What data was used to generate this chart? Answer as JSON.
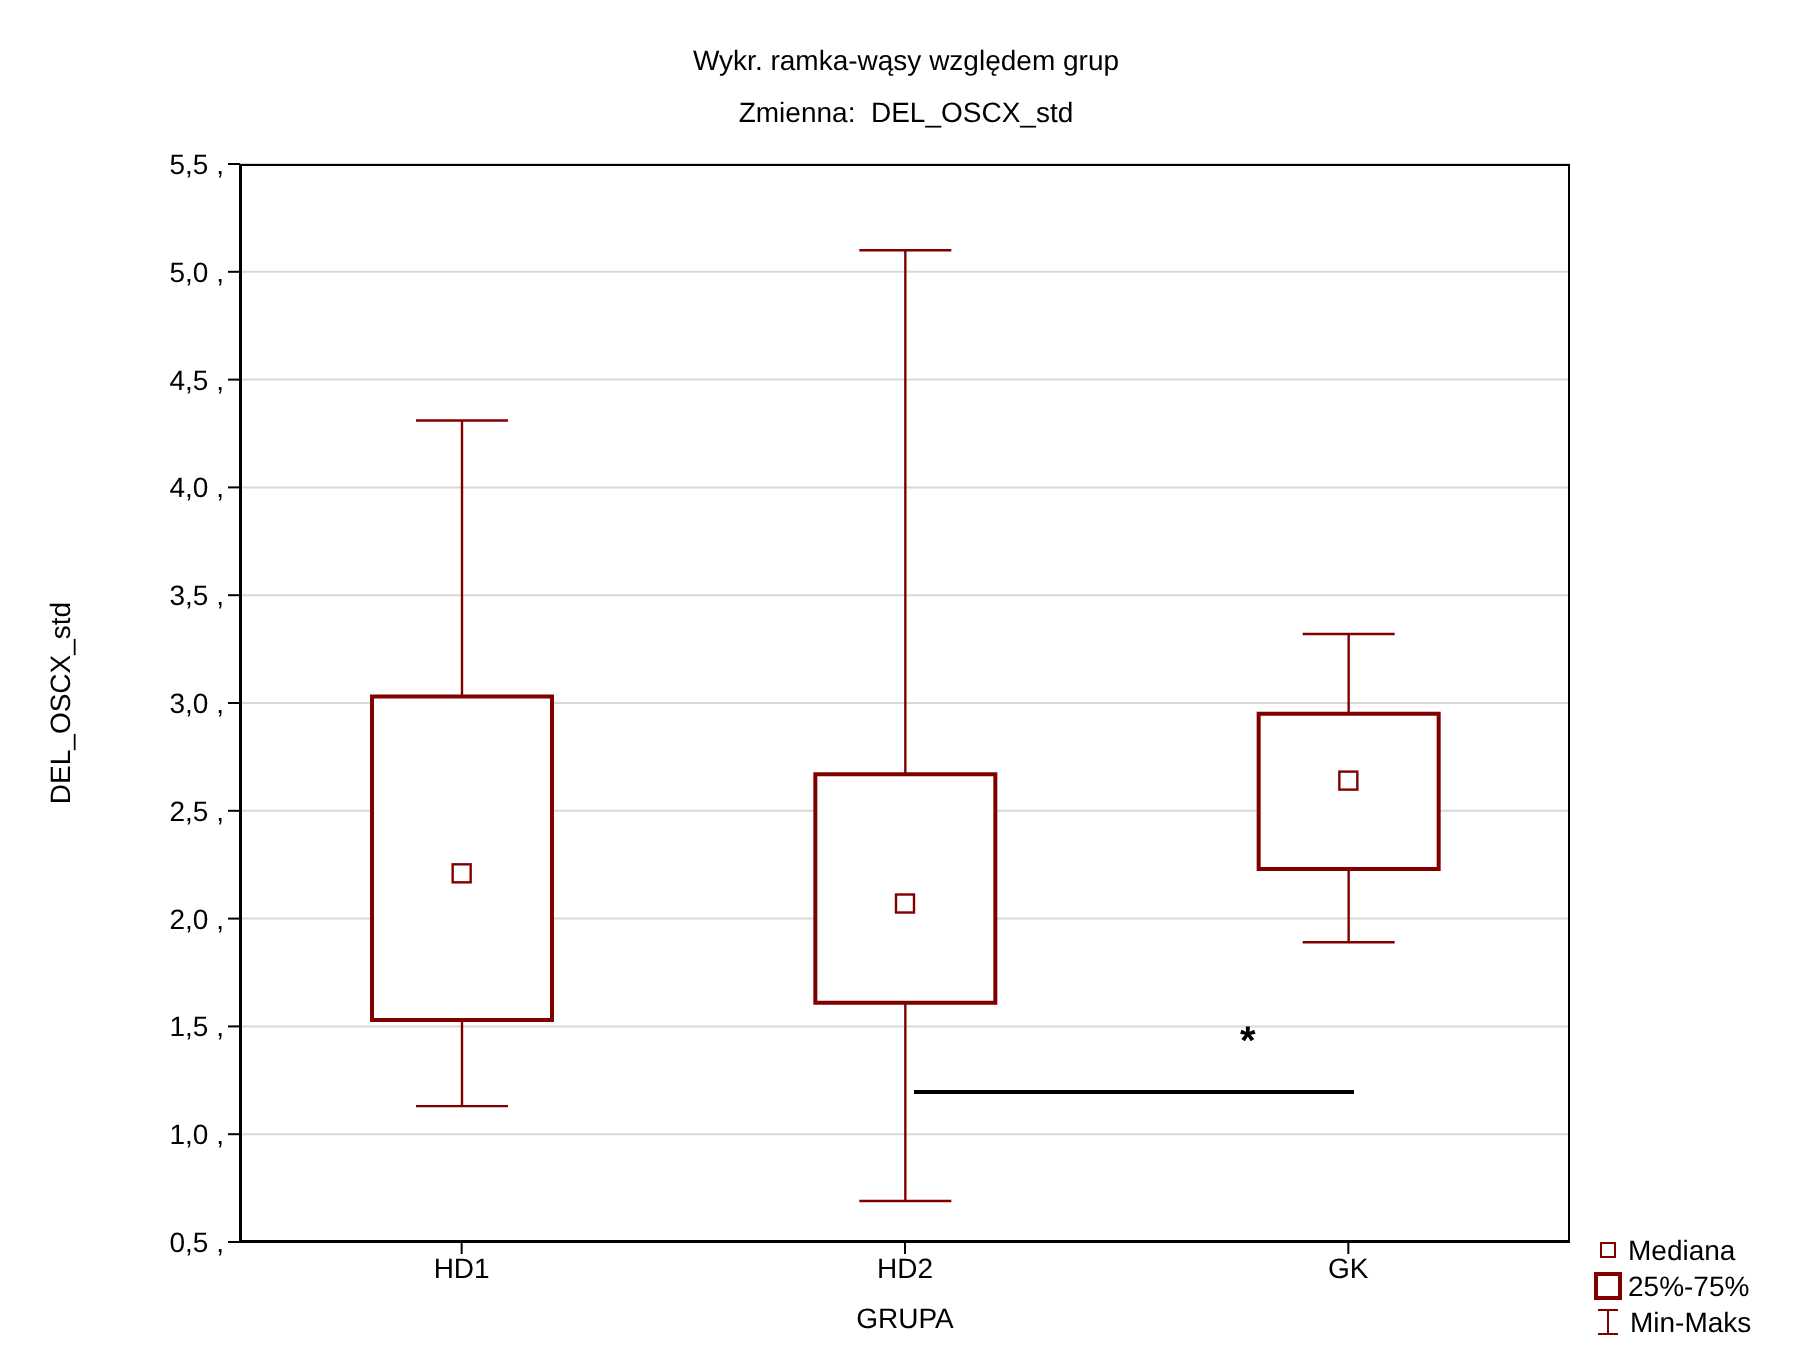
{
  "chart_data": {
    "type": "box",
    "title": "Wykr. ramka-wąsy względem grup",
    "subtitle": "Zmienna:  DEL_OSCX_std",
    "xlabel": "GRUPA",
    "ylabel": "DEL_OSCX_std",
    "categories": [
      "HD1",
      "HD2",
      "GK"
    ],
    "boxes": [
      {
        "low": 1.13,
        "q1": 1.53,
        "median": 2.21,
        "q3": 3.03,
        "high": 4.31
      },
      {
        "low": 0.69,
        "q1": 1.61,
        "median": 2.07,
        "q3": 2.67,
        "high": 5.1
      },
      {
        "low": 1.89,
        "q1": 2.23,
        "median": 2.64,
        "q3": 2.95,
        "high": 3.32
      }
    ],
    "color": "#800000",
    "ylim": [
      0.5,
      5.5
    ],
    "yticks": [
      {
        "value": 0.5,
        "label": "0,5  ,"
      },
      {
        "value": 1,
        "label": "1,0  ,"
      },
      {
        "value": 1.5,
        "label": "1,5  ,"
      },
      {
        "value": 2,
        "label": "2,0  ,"
      },
      {
        "value": 2.5,
        "label": "2,5  ,"
      },
      {
        "value": 3,
        "label": "3,0  ,"
      },
      {
        "value": 3.5,
        "label": "3,5  ,"
      },
      {
        "value": 4,
        "label": "4,0  ,"
      },
      {
        "value": 4.5,
        "label": "4,5  ,"
      },
      {
        "value": 5,
        "label": "5,0  ,"
      },
      {
        "value": 5.5,
        "label": "5,5  ,"
      }
    ],
    "grid": "y",
    "annotations": [
      "*",
      "Mediana",
      "25%-75%",
      "Min-Maks"
    ]
  }
}
